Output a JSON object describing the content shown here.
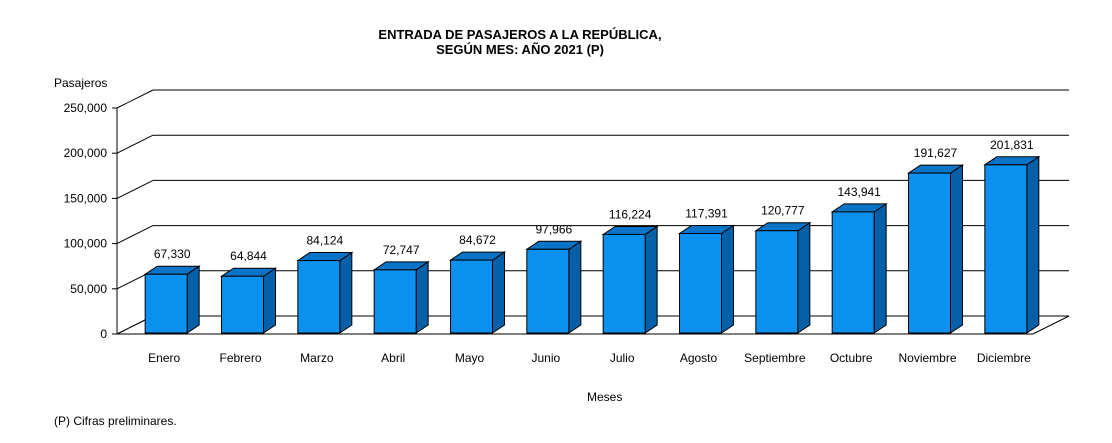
{
  "chart_data": {
    "type": "bar",
    "title": "ENTRADA  DE PASAJEROS  A LA REPÚBLICA,",
    "subtitle": "SEGÚN MES: AÑO 2021 (P)",
    "xlabel": "Meses",
    "ylabel": "Pasajeros",
    "ylim": [
      0,
      250000
    ],
    "yticks": [
      0,
      50000,
      100000,
      150000,
      200000,
      250000
    ],
    "ytick_labels": [
      "0",
      "50,000",
      "100,000",
      "150,000",
      "200,000",
      "250,000"
    ],
    "grid": true,
    "style": "3d-column",
    "categories": [
      "Enero",
      "Febrero",
      "Marzo",
      "Abril",
      "Mayo",
      "Junio",
      "Julio",
      "Agosto",
      "Septiembre",
      "Octubre",
      "Noviembre",
      "Diciembre"
    ],
    "values": [
      67330,
      64844,
      84124,
      72747,
      84672,
      97966,
      116224,
      117391,
      120777,
      143941,
      191627,
      201831
    ],
    "value_labels": [
      "67,330",
      "64,844",
      "84,124",
      "72,747",
      "84,672",
      "97,966",
      "116,224",
      "117,391",
      "120,777",
      "143,941",
      "191,627",
      "201,831"
    ],
    "colors": {
      "front": "#0a91f0",
      "side": "#0560a8",
      "top": "#0874c8"
    }
  },
  "footnote": "(P) Cifras  preliminares."
}
